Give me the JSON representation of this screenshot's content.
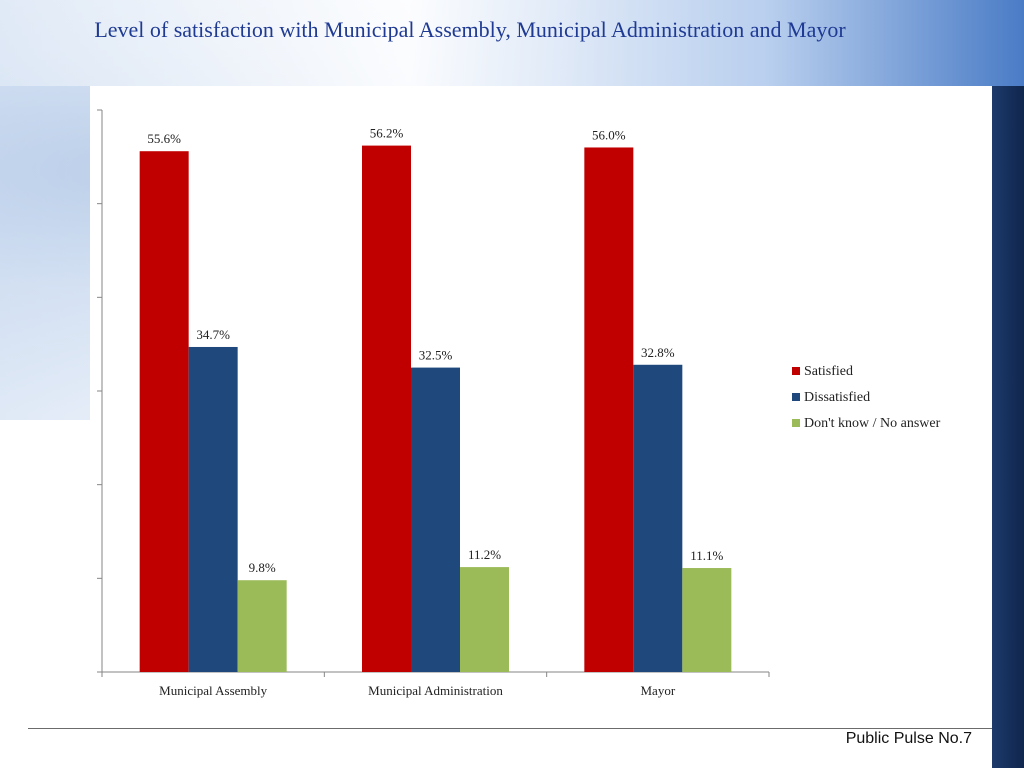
{
  "footer": {
    "text": "Public Pulse No.7"
  },
  "colors": {
    "satisfied": "#c00000",
    "dissatisfied": "#1f497d",
    "dont_know": "#9bbb59",
    "title": "#1f3a93"
  },
  "chart_data": {
    "type": "bar",
    "title": "Level of satisfaction with Municipal Assembly, Municipal Administration and Mayor",
    "categories": [
      "Municipal Assembly",
      "Municipal Administration",
      "Mayor"
    ],
    "series": [
      {
        "name": "Satisfied",
        "values": [
          55.6,
          56.2,
          56.0
        ],
        "labels": [
          "55.6%",
          "56.2%",
          "56.0%"
        ]
      },
      {
        "name": "Dissatisfied",
        "values": [
          34.7,
          32.5,
          32.8
        ],
        "labels": [
          "34.7%",
          "32.5%",
          "32.8%"
        ]
      },
      {
        "name": "Don't know / No answer",
        "values": [
          9.8,
          11.2,
          11.1
        ],
        "labels": [
          "9.8%",
          "11.2%",
          "11.1%"
        ]
      }
    ],
    "ylim": [
      0,
      60
    ],
    "yticks": [
      "0%",
      "10%",
      "20%",
      "30%",
      "40%",
      "50%",
      "60%"
    ],
    "grid": false,
    "legend": "right"
  }
}
